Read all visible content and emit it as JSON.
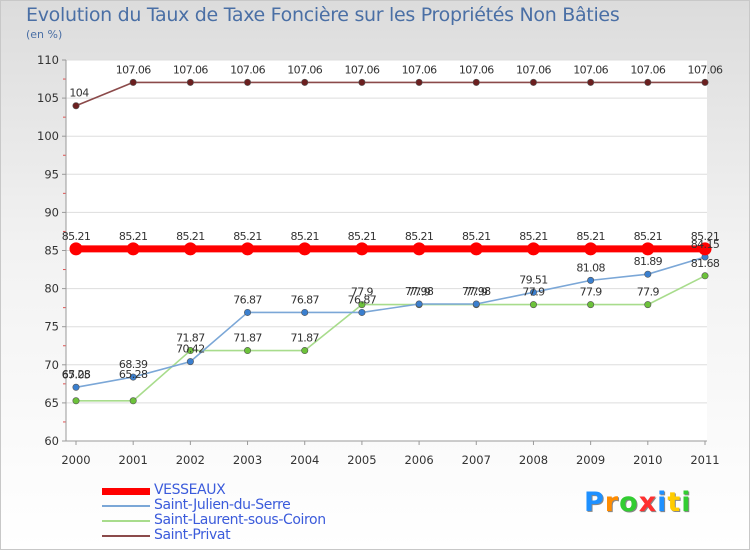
{
  "header": {
    "title": "Evolution du Taux de Taxe Foncière sur les Propriétés Non Bâties",
    "unit": "(en %)"
  },
  "logo": {
    "text": "Proxiti",
    "colors": [
      "#1e90ff",
      "#ff8c00",
      "#32cd32",
      "#ff3030",
      "#1e90ff",
      "#ffcc00",
      "#32cd32"
    ]
  },
  "chart_data": {
    "type": "line",
    "title": "Evolution du Taux de Taxe Foncière sur les Propriétés Non Bâties",
    "ylabel": "(en %)",
    "xlabel": "",
    "categories": [
      "2000",
      "2001",
      "2002",
      "2003",
      "2004",
      "2005",
      "2006",
      "2007",
      "2008",
      "2009",
      "2010",
      "2011"
    ],
    "ylim": [
      60,
      110
    ],
    "yticks": [
      "60",
      "65",
      "70",
      "75",
      "80",
      "85",
      "90",
      "95",
      "100",
      "105",
      "110"
    ],
    "grid": true,
    "legend_position": "bottom-left",
    "series": [
      {
        "name": "VESSEAUX",
        "color": "#ff0000",
        "emphasis": "thick",
        "values": [
          85.21,
          85.21,
          85.21,
          85.21,
          85.21,
          85.21,
          85.21,
          85.21,
          85.21,
          85.21,
          85.21,
          85.21
        ],
        "labels": [
          "85.21",
          "85.21",
          "85.21",
          "85.21",
          "85.21",
          "85.21",
          "85.21",
          "85.21",
          "85.21",
          "85.21",
          "85.21",
          "85.21"
        ]
      },
      {
        "name": "Saint-Julien-du-Serre",
        "color": "#7ba7d7",
        "marker": "#3a7fcf",
        "values": [
          67.05,
          68.39,
          70.42,
          76.87,
          76.87,
          76.87,
          77.98,
          77.98,
          79.51,
          81.08,
          81.89,
          84.15
        ],
        "labels": [
          "67.05",
          "68.39",
          "70.42",
          "76.87",
          "76.87",
          "76.87",
          "77.98",
          "77.98",
          "79.51",
          "81.08",
          "81.89",
          "84.15"
        ]
      },
      {
        "name": "Saint-Laurent-sous-Coiron",
        "color": "#a8dc8c",
        "marker": "#6cc23a",
        "values": [
          65.28,
          65.28,
          71.87,
          71.87,
          71.87,
          77.9,
          77.9,
          77.9,
          77.9,
          77.9,
          77.9,
          81.68
        ],
        "labels": [
          "65.28",
          "65.28",
          "71.87",
          "71.87",
          "71.87",
          "77.9",
          "77.9",
          "77.9",
          "77.9",
          "77.9",
          "77.9",
          "81.68"
        ]
      },
      {
        "name": "Saint-Privat",
        "color": "#8b4a4a",
        "marker": "#6b1f1f",
        "values": [
          104,
          107.06,
          107.06,
          107.06,
          107.06,
          107.06,
          107.06,
          107.06,
          107.06,
          107.06,
          107.06,
          107.06
        ],
        "labels": [
          "104",
          "107.06",
          "107.06",
          "107.06",
          "107.06",
          "107.06",
          "107.06",
          "107.06",
          "107.06",
          "107.06",
          "107.06",
          "107.06"
        ]
      }
    ]
  }
}
